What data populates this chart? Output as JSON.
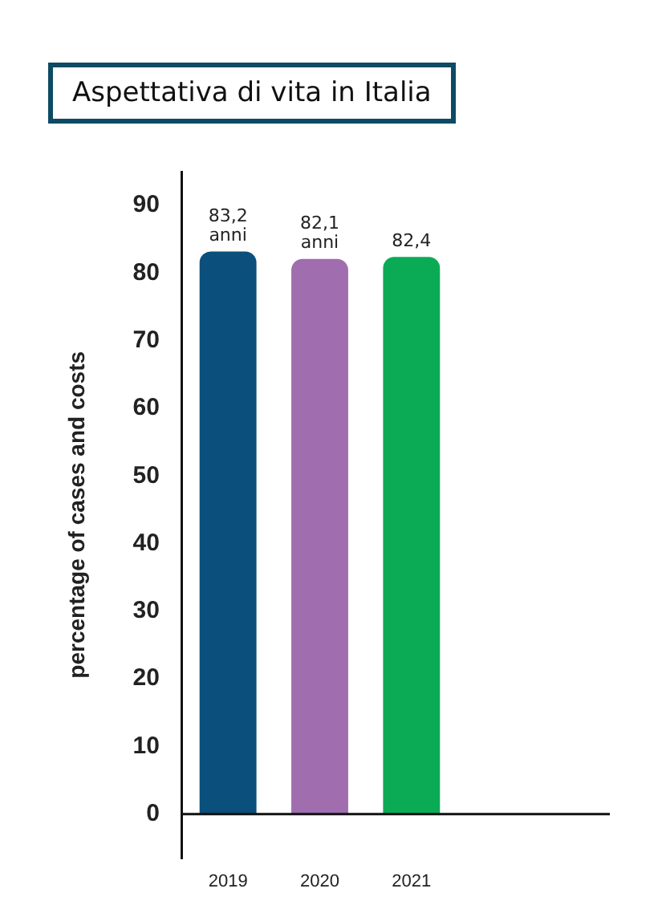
{
  "chart_data": {
    "type": "bar",
    "title": "Aspettativa di vita in Italia",
    "ylabel": "percentage of cases and costs",
    "categories": [
      "2019",
      "2020",
      "2021"
    ],
    "values": [
      83.2,
      82.1,
      82.4
    ],
    "colors": [
      "#0b4f7c",
      "#a06daf",
      "#0bab56"
    ],
    "value_labels": [
      "83,2 anni",
      "82,1 anni",
      "82,4"
    ],
    "ylim": [
      -6.5,
      95
    ],
    "yticks": [
      0,
      10,
      20,
      30,
      40,
      50,
      60,
      70,
      80,
      90
    ],
    "ref_lines": [
      {
        "axis": "y",
        "value": 0,
        "color": "#111111"
      }
    ],
    "legend": false
  }
}
